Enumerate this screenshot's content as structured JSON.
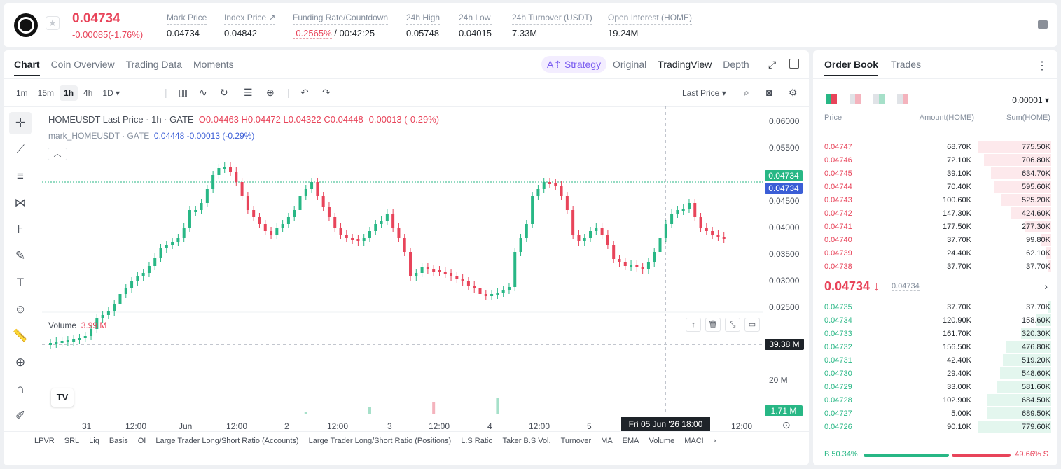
{
  "ticker": {
    "last_price": "0.04734",
    "change": "-0.00085(-1.76%)",
    "stats": [
      {
        "label": "Mark Price",
        "value": "0.04734"
      },
      {
        "label": "Index Price ↗",
        "value": "0.04842"
      },
      {
        "label": "Funding Rate/Countdown",
        "value_red": "-0.2565%",
        "value": " / 00:42:25"
      },
      {
        "label": "24h High",
        "value": "0.05748"
      },
      {
        "label": "24h Low",
        "value": "0.04015"
      },
      {
        "label": "24h Turnover (USDT)",
        "value": "7.33M"
      },
      {
        "label": "Open Interest (HOME)",
        "value": "19.24M"
      }
    ]
  },
  "chart_tabs": [
    "Chart",
    "Coin Overview",
    "Trading Data",
    "Moments"
  ],
  "view_tabs": [
    "Original",
    "TradingView",
    "Depth"
  ],
  "strategy_label": "A⇡ Strategy",
  "timeframes": [
    "1m",
    "15m",
    "1h",
    "4h",
    "1D ▾"
  ],
  "price_source": "Last Price ▾",
  "legend": {
    "symbol": "HOMEUSDT Last Price · 1h · GATE",
    "ohlc": "O0.04463 H0.04472 L0.04322 C0.04448 -0.00013 (-0.29%)",
    "mark_symbol": "mark_HOMEUSDT · GATE",
    "mark_value": "0.04448 -0.00013 (-0.29%)"
  },
  "price_axis": [
    "0.06000",
    "0.05500",
    "0.04500",
    "0.04000",
    "0.03500",
    "0.03000",
    "0.02500"
  ],
  "price_tags": {
    "last": "0.04734",
    "mark": "0.04734",
    "crosshair_vol": "39.38 M",
    "vol_last": "1.71 M"
  },
  "volume_legend": {
    "label": "Volume",
    "value": "3.99 M"
  },
  "volume_axis": [
    "20 M"
  ],
  "time_axis": [
    "31",
    "12:00",
    "Jun",
    "12:00",
    "2",
    "12:00",
    "3",
    "12:00",
    "4",
    "12:00",
    "5",
    "12:00"
  ],
  "crosshair_time": "Fri 05 Jun '26   18:00",
  "indicators": [
    "LPVR",
    "SRL",
    "Liq",
    "Basis",
    "OI",
    "Large Trader Long/Short Ratio (Accounts)",
    "Large Trader Long/Short Ratio (Positions)",
    "L.S Ratio",
    "Taker B.S Vol.",
    "Turnover",
    "MA",
    "EMA",
    "Volume",
    "MACI"
  ],
  "orderbook": {
    "tabs": [
      "Order Book",
      "Trades"
    ],
    "precision": "0.00001 ▾",
    "headers": {
      "price": "Price",
      "amount": "Amount(HOME)",
      "sum": "Sum(HOME)"
    },
    "asks": [
      {
        "price": "0.04747",
        "amount": "68.70K",
        "sum": "775.50K",
        "depth": 0.99
      },
      {
        "price": "0.04746",
        "amount": "72.10K",
        "sum": "706.80K",
        "depth": 0.91
      },
      {
        "price": "0.04745",
        "amount": "39.10K",
        "sum": "634.70K",
        "depth": 0.82
      },
      {
        "price": "0.04744",
        "amount": "70.40K",
        "sum": "595.60K",
        "depth": 0.77
      },
      {
        "price": "0.04743",
        "amount": "100.60K",
        "sum": "525.20K",
        "depth": 0.68
      },
      {
        "price": "0.04742",
        "amount": "147.30K",
        "sum": "424.60K",
        "depth": 0.55
      },
      {
        "price": "0.04741",
        "amount": "177.50K",
        "sum": "277.30K",
        "depth": 0.36
      },
      {
        "price": "0.04740",
        "amount": "37.70K",
        "sum": "99.80K",
        "depth": 0.13
      },
      {
        "price": "0.04739",
        "amount": "24.40K",
        "sum": "62.10K",
        "depth": 0.08
      },
      {
        "price": "0.04738",
        "amount": "37.70K",
        "sum": "37.70K",
        "depth": 0.05
      }
    ],
    "mid_price": "0.04734 ↓",
    "mark_price": "0.04734",
    "bids": [
      {
        "price": "0.04735",
        "amount": "37.70K",
        "sum": "37.70K",
        "depth": 0.05
      },
      {
        "price": "0.04734",
        "amount": "120.90K",
        "sum": "158.60K",
        "depth": 0.2
      },
      {
        "price": "0.04733",
        "amount": "161.70K",
        "sum": "320.30K",
        "depth": 0.41
      },
      {
        "price": "0.04732",
        "amount": "156.50K",
        "sum": "476.80K",
        "depth": 0.61
      },
      {
        "price": "0.04731",
        "amount": "42.40K",
        "sum": "519.20K",
        "depth": 0.66
      },
      {
        "price": "0.04730",
        "amount": "29.40K",
        "sum": "548.60K",
        "depth": 0.7
      },
      {
        "price": "0.04729",
        "amount": "33.00K",
        "sum": "581.60K",
        "depth": 0.74
      },
      {
        "price": "0.04728",
        "amount": "102.90K",
        "sum": "684.50K",
        "depth": 0.87
      },
      {
        "price": "0.04727",
        "amount": "5.00K",
        "sum": "689.50K",
        "depth": 0.88
      },
      {
        "price": "0.04726",
        "amount": "90.10K",
        "sum": "779.60K",
        "depth": 0.99
      }
    ],
    "buy_ratio": "B 50.34%",
    "sell_ratio": "49.66% S"
  },
  "colors": {
    "up": "#28b785",
    "down": "#e8445a"
  }
}
